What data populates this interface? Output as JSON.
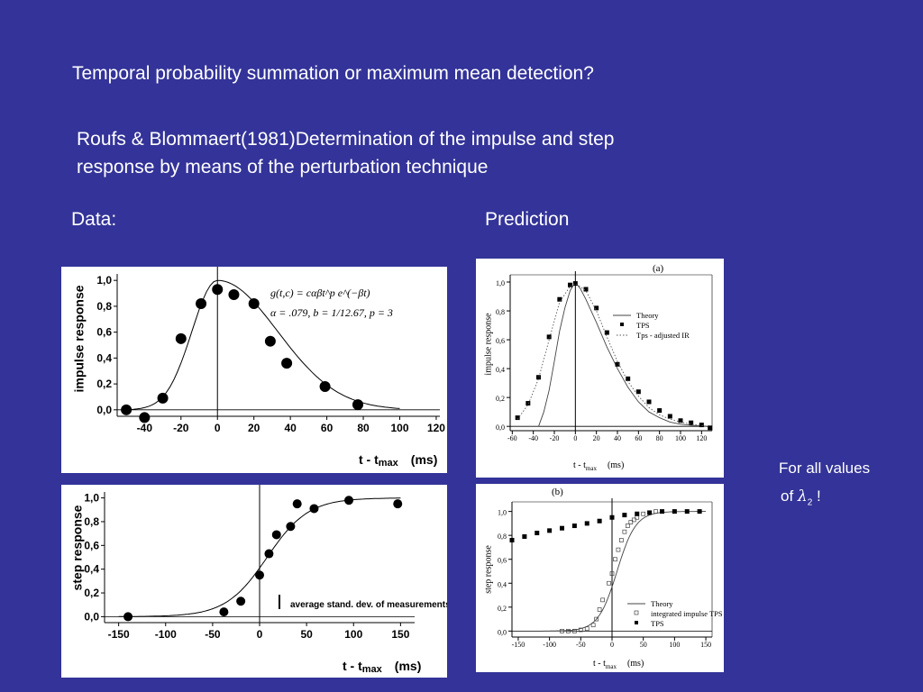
{
  "header": {
    "title": "Temporal probability summation or maximum mean detection?",
    "subtitle_line1": "Roufs & Blommaert(1981)Determination of the impulse and step",
    "subtitle_line2": "response by means of the perturbation technique"
  },
  "labels": {
    "data": "Data:",
    "prediction": "Prediction"
  },
  "note": {
    "line1": "For all values",
    "line2_prefix": "of",
    "lambda": "λ",
    "lambda_sub": "2",
    "line2_suffix": "!"
  },
  "colors": {
    "background": "#333399",
    "text": "#ffffff",
    "panel": "#ffffff",
    "ink": "#000000"
  },
  "chart_data": [
    {
      "id": "data_impulse",
      "type": "scatter",
      "ylabel": "impulse response",
      "xlabel": "t - t",
      "xlabel_sub": "max",
      "xunit": "(ms)",
      "xlim": [
        -55,
        122
      ],
      "ylim": [
        -0.05,
        1.05
      ],
      "xticks": [
        -40,
        -20,
        0,
        20,
        40,
        60,
        80,
        100,
        120
      ],
      "yticks": [
        0.0,
        0.2,
        0.4,
        0.6,
        0.8,
        1.0
      ],
      "yticklabels": [
        "0,0",
        "0,2",
        "0,4",
        "0,6",
        "0,8",
        "1,0"
      ],
      "formula_line1": "g(t,c) = cαβt^p e^(−βt)",
      "formula_line2": "α = .079, b = 1/12.67, p = 3",
      "points": [
        [
          -50,
          0.0
        ],
        [
          -40,
          -0.06
        ],
        [
          -30,
          0.09
        ],
        [
          -20,
          0.55
        ],
        [
          -9,
          0.82
        ],
        [
          0,
          0.93
        ],
        [
          9,
          0.89
        ],
        [
          20,
          0.82
        ],
        [
          29,
          0.53
        ],
        [
          38,
          0.36
        ],
        [
          59,
          0.18
        ],
        [
          77,
          0.04
        ]
      ],
      "curve": {
        "peak": 0.0,
        "rise_sigma": 14,
        "fall_sigma": 33,
        "end": 100
      }
    },
    {
      "id": "data_step",
      "type": "scatter",
      "ylabel": "step response",
      "xlabel": "t - t",
      "xlabel_sub": "max",
      "xunit": "(ms)",
      "xlim": [
        -165,
        165
      ],
      "ylim": [
        -0.05,
        1.05
      ],
      "xticks": [
        -150,
        -100,
        -50,
        0,
        50,
        100,
        150
      ],
      "yticks": [
        0.0,
        0.2,
        0.4,
        0.6,
        0.8,
        1.0
      ],
      "yticklabels": [
        "0,0",
        "0,2",
        "0,4",
        "0,6",
        "0,8",
        "1,0"
      ],
      "annotation": "average stand. dev. of measurements",
      "points": [
        [
          -140,
          0.0
        ],
        [
          -38,
          0.04
        ],
        [
          -20,
          0.13
        ],
        [
          0,
          0.35
        ],
        [
          10,
          0.53
        ],
        [
          18,
          0.69
        ],
        [
          33,
          0.76
        ],
        [
          40,
          0.95
        ],
        [
          58,
          0.91
        ],
        [
          95,
          0.98
        ],
        [
          147,
          0.95
        ]
      ],
      "curve": {
        "center": 8,
        "width": 22,
        "start": -150,
        "end": 150
      }
    },
    {
      "id": "pred_impulse",
      "type": "line",
      "panel_label": "(a)",
      "ylabel": "impulse response",
      "xlabel": "t - t",
      "xlabel_sub": "max",
      "xunit": "(ms)",
      "xlim": [
        -62,
        130
      ],
      "ylim": [
        -0.03,
        1.05
      ],
      "xticks": [
        -60,
        -40,
        -20,
        0,
        20,
        40,
        60,
        80,
        100,
        120
      ],
      "yticks": [
        0.0,
        0.2,
        0.4,
        0.6,
        0.8,
        1.0
      ],
      "yticklabels": [
        "0,0",
        "0,2",
        "0,4",
        "0,6",
        "0,8",
        "1,0"
      ],
      "legend": [
        "Theory",
        "TPS",
        "Tps - adjusted IR"
      ],
      "series": [
        {
          "name": "Theory",
          "style": "line",
          "x": [
            -35,
            -30,
            -25,
            -20,
            -15,
            -10,
            -5,
            0,
            5,
            10,
            20,
            30,
            40,
            50,
            60,
            70,
            80,
            90,
            100,
            110,
            125
          ],
          "y": [
            0.0,
            0.1,
            0.25,
            0.45,
            0.66,
            0.82,
            0.94,
            1.0,
            0.95,
            0.88,
            0.72,
            0.55,
            0.4,
            0.27,
            0.17,
            0.1,
            0.06,
            0.03,
            0.015,
            0.008,
            0.0
          ]
        },
        {
          "name": "TPS",
          "style": "square",
          "x": [
            -55,
            -45,
            -35,
            -25,
            -15,
            -5,
            0,
            10,
            20,
            30,
            40,
            50,
            60,
            70,
            80,
            90,
            100,
            110,
            120,
            128
          ],
          "y": [
            0.06,
            0.16,
            0.34,
            0.62,
            0.88,
            0.98,
            0.99,
            0.95,
            0.82,
            0.65,
            0.43,
            0.33,
            0.24,
            0.17,
            0.11,
            0.07,
            0.04,
            0.025,
            0.01,
            -0.01
          ]
        },
        {
          "name": "Tps - adjusted IR",
          "style": "dotted",
          "x": [
            -55,
            -45,
            -35,
            -25,
            -15,
            -5,
            0,
            10,
            20,
            30,
            40,
            50,
            60,
            70,
            80,
            90,
            100,
            110,
            125
          ],
          "y": [
            0.05,
            0.15,
            0.33,
            0.6,
            0.86,
            0.97,
            0.99,
            0.94,
            0.8,
            0.62,
            0.45,
            0.31,
            0.21,
            0.13,
            0.08,
            0.05,
            0.03,
            0.015,
            0.0
          ]
        }
      ]
    },
    {
      "id": "pred_step",
      "type": "line",
      "panel_label": "(b)",
      "ylabel": "step response",
      "xlabel": "t - t",
      "xlabel_sub": "max",
      "xunit": "(ms)",
      "xlim": [
        -160,
        160
      ],
      "ylim": [
        -0.05,
        1.08
      ],
      "xticks": [
        -150,
        -100,
        -50,
        0,
        50,
        100,
        150
      ],
      "yticks": [
        0.0,
        0.2,
        0.4,
        0.6,
        0.8,
        1.0
      ],
      "yticklabels": [
        "0,0",
        "0,2",
        "0,4",
        "0,6",
        "0,8",
        "1,0"
      ],
      "legend": [
        "Theory",
        "integrated impulse TPS",
        "TPS"
      ],
      "series": [
        {
          "name": "Theory",
          "style": "line",
          "curve": {
            "center": 8,
            "width": 15,
            "start": -110,
            "end": 150
          }
        },
        {
          "name": "integrated impulse TPS",
          "style": "open-square",
          "x": [
            -80,
            -70,
            -60,
            -50,
            -40,
            -30,
            -25,
            -20,
            -15,
            -5,
            0,
            5,
            10,
            15,
            20,
            25,
            30,
            35,
            40,
            50,
            60,
            70
          ],
          "y": [
            0.0,
            0.0,
            0.0,
            0.01,
            0.02,
            0.05,
            0.1,
            0.18,
            0.26,
            0.4,
            0.48,
            0.6,
            0.68,
            0.76,
            0.83,
            0.88,
            0.91,
            0.93,
            0.95,
            0.98,
            0.99,
            1.0
          ]
        },
        {
          "name": "TPS",
          "style": "square",
          "x": [
            -160,
            -140,
            -120,
            -100,
            -80,
            -60,
            -40,
            -20,
            0,
            20,
            40,
            60,
            80,
            100,
            120,
            140
          ],
          "y": [
            0.76,
            0.79,
            0.82,
            0.84,
            0.86,
            0.88,
            0.9,
            0.92,
            0.95,
            0.97,
            0.98,
            0.99,
            1.0,
            1.0,
            1.0,
            1.0
          ]
        }
      ]
    }
  ]
}
